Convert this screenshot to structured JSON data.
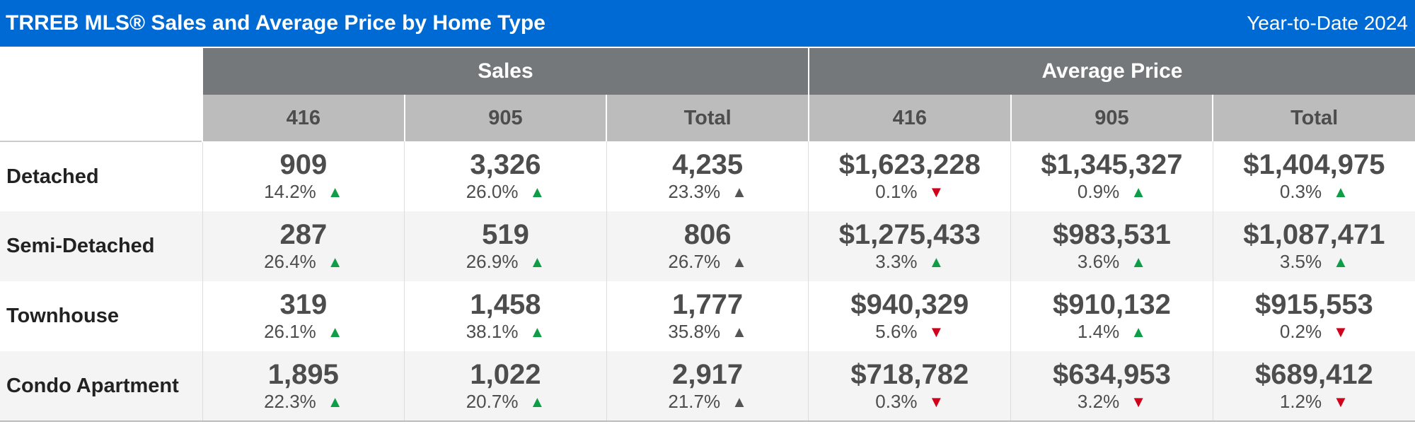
{
  "header": {
    "title": "TRREB MLS® Sales and Average Price by Home Type",
    "period": "Year-to-Date 2024"
  },
  "groups": [
    "Sales",
    "Average Price"
  ],
  "subheaders": [
    "416",
    "905",
    "Total",
    "416",
    "905",
    "Total"
  ],
  "colors": {
    "header_blue": "#006ad4",
    "up_green": "#0f9d48",
    "down_red": "#d0021b",
    "neutral_up": "#555555"
  },
  "rows": [
    {
      "label": "Detached",
      "cells": [
        {
          "value": "909",
          "pct": "14.2%",
          "dir": "up-green"
        },
        {
          "value": "3,326",
          "pct": "26.0%",
          "dir": "up-green"
        },
        {
          "value": "4,235",
          "pct": "23.3%",
          "dir": "up-gray"
        },
        {
          "value": "$1,623,228",
          "pct": "0.1%",
          "dir": "down-red"
        },
        {
          "value": "$1,345,327",
          "pct": "0.9%",
          "dir": "up-green"
        },
        {
          "value": "$1,404,975",
          "pct": "0.3%",
          "dir": "up-green"
        }
      ]
    },
    {
      "label": "Semi-Detached",
      "cells": [
        {
          "value": "287",
          "pct": "26.4%",
          "dir": "up-green"
        },
        {
          "value": "519",
          "pct": "26.9%",
          "dir": "up-green"
        },
        {
          "value": "806",
          "pct": "26.7%",
          "dir": "up-gray"
        },
        {
          "value": "$1,275,433",
          "pct": "3.3%",
          "dir": "up-green"
        },
        {
          "value": "$983,531",
          "pct": "3.6%",
          "dir": "up-green"
        },
        {
          "value": "$1,087,471",
          "pct": "3.5%",
          "dir": "up-green"
        }
      ]
    },
    {
      "label": "Townhouse",
      "cells": [
        {
          "value": "319",
          "pct": "26.1%",
          "dir": "up-green"
        },
        {
          "value": "1,458",
          "pct": "38.1%",
          "dir": "up-green"
        },
        {
          "value": "1,777",
          "pct": "35.8%",
          "dir": "up-gray"
        },
        {
          "value": "$940,329",
          "pct": "5.6%",
          "dir": "down-red"
        },
        {
          "value": "$910,132",
          "pct": "1.4%",
          "dir": "up-green"
        },
        {
          "value": "$915,553",
          "pct": "0.2%",
          "dir": "down-red"
        }
      ]
    },
    {
      "label": "Condo Apartment",
      "cells": [
        {
          "value": "1,895",
          "pct": "22.3%",
          "dir": "up-green"
        },
        {
          "value": "1,022",
          "pct": "20.7%",
          "dir": "up-green"
        },
        {
          "value": "2,917",
          "pct": "21.7%",
          "dir": "up-gray"
        },
        {
          "value": "$718,782",
          "pct": "0.3%",
          "dir": "down-red"
        },
        {
          "value": "$634,953",
          "pct": "3.2%",
          "dir": "down-red"
        },
        {
          "value": "$689,412",
          "pct": "1.2%",
          "dir": "down-red"
        }
      ]
    }
  ]
}
